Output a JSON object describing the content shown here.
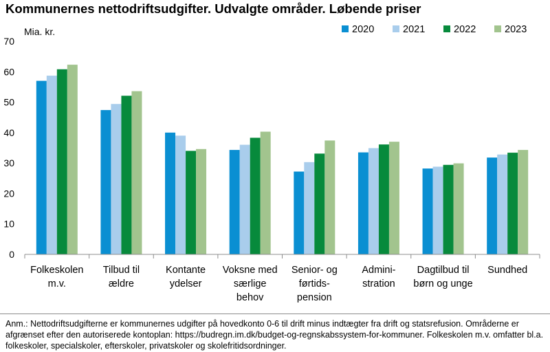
{
  "title": "Kommunernes nettodriftsudgifter. Udvalgte områder. Løbende priser",
  "note": "Anm.: Nettodriftsudgifterne er kommunernes udgifter på hovedkonto 0-6 til drift minus indtægter fra drift og statsrefusion. Områderne er afgrænset efter den autoriserede kontoplan: https://budregn.im.dk/budget-og-regnskabssystem-for-kommuner. Folkeskolen m.v. omfatter bl.a. folkeskoler, specialskoler, efterskoler, privatskoler og skolefritidsordninger.",
  "chart_data": {
    "type": "bar",
    "title": "Kommunernes nettodriftsudgifter. Udvalgte områder. Løbende priser",
    "ylabel": "Mia. kr.",
    "xlabel": "",
    "ylim": [
      0,
      70
    ],
    "yticks": [
      0,
      10,
      20,
      30,
      40,
      50,
      60,
      70
    ],
    "grid": false,
    "legend_position": "top-right",
    "categories": [
      [
        "Folkeskolen",
        "m.v."
      ],
      [
        "Tilbud til",
        "ældre"
      ],
      [
        "Kontante",
        "ydelser"
      ],
      [
        "Voksne med",
        "særlige",
        "behov"
      ],
      [
        "Senior- og",
        "førtids-",
        "pension"
      ],
      [
        "Admini-",
        "stration"
      ],
      [
        "Dagtilbud til",
        "børn og unge"
      ],
      [
        "Sundhed"
      ]
    ],
    "series": [
      {
        "name": "2020",
        "color": "#0a8fd2",
        "values": [
          57.0,
          47.4,
          40.0,
          34.3,
          27.2,
          33.5,
          28.2,
          31.8
        ]
      },
      {
        "name": "2021",
        "color": "#a9cdec",
        "values": [
          58.7,
          49.4,
          39.0,
          36.0,
          30.3,
          34.9,
          28.8,
          32.8
        ]
      },
      {
        "name": "2022",
        "color": "#078a3c",
        "values": [
          60.8,
          52.1,
          34.0,
          38.3,
          33.1,
          36.1,
          29.4,
          33.4
        ]
      },
      {
        "name": "2023",
        "color": "#a2c48e",
        "values": [
          62.3,
          53.6,
          34.6,
          40.3,
          37.4,
          37.0,
          29.9,
          34.3
        ]
      }
    ]
  }
}
